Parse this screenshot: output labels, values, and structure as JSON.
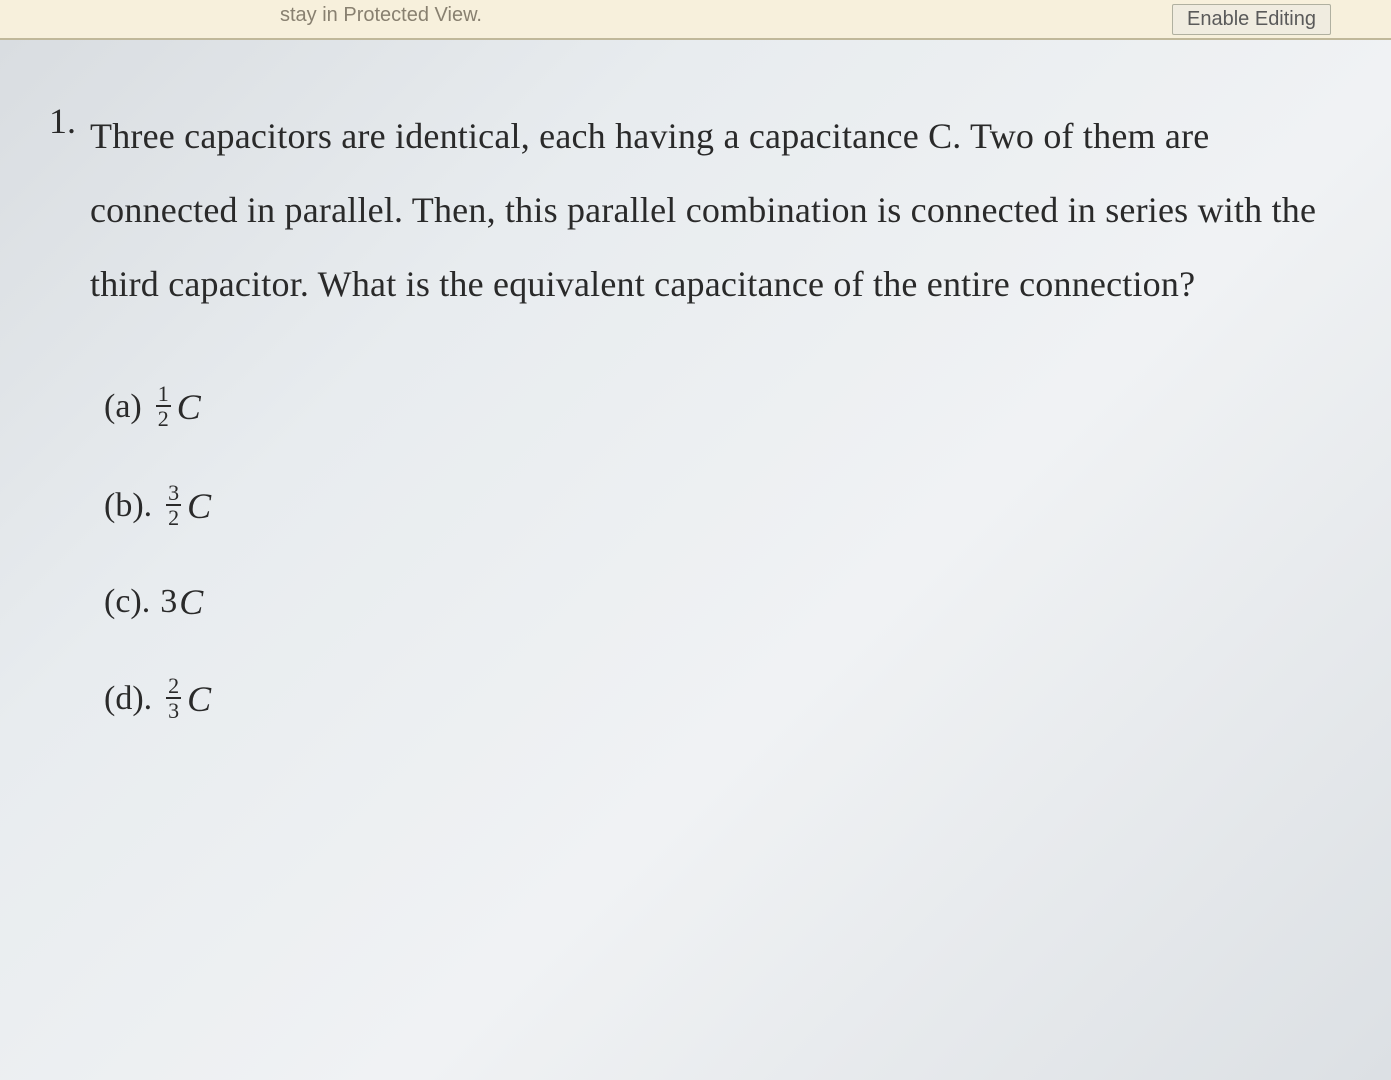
{
  "topbar": {
    "partial_text": "stay in Protected View.",
    "enable_button": "Enable Editing"
  },
  "question": {
    "number": "1.",
    "text": "Three capacitors are identical, each having a capacitance C. Two of them are connected in parallel. Then, this parallel combination is connected in series with the third capacitor. What is the equivalent capacitance of the entire connection?"
  },
  "options": {
    "a": {
      "label": "(a)",
      "num": "1",
      "den": "2",
      "var": "C"
    },
    "b": {
      "label": "(b).",
      "num": "3",
      "den": "2",
      "var": "C"
    },
    "c": {
      "label": "(c).",
      "coef": "3",
      "var": "C"
    },
    "d": {
      "label": "(d).",
      "num": "2",
      "den": "3",
      "var": "C"
    }
  },
  "colors": {
    "text": "#2a2a2a",
    "bg_light": "#e8ecef",
    "topbar_bg": "#f7f0dc",
    "frac_rule": "#2a2a2a"
  },
  "fonts": {
    "body_family": "Times New Roman",
    "body_size_pt": 27,
    "option_size_pt": 25,
    "frac_size_pt": 16
  }
}
